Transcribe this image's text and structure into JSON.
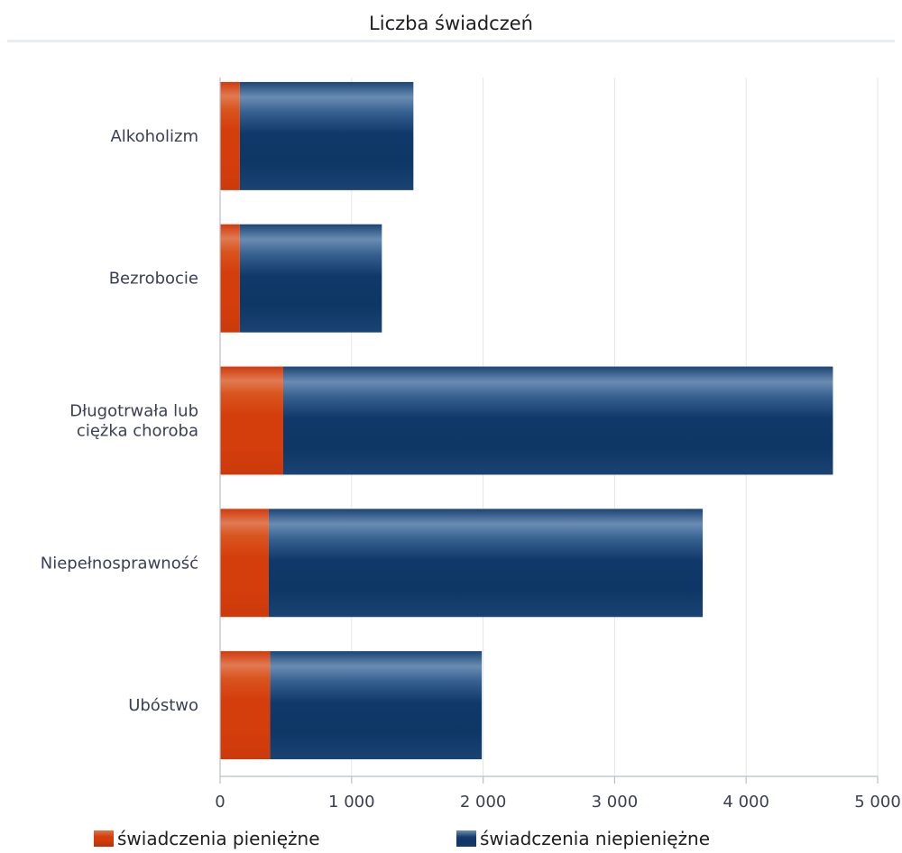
{
  "chart_data": {
    "type": "bar",
    "orientation": "horizontal",
    "stacked": true,
    "title": "Liczba świadczeń",
    "categories": [
      "Alkoholizm",
      "Bezrobocie",
      "Długotrwała lub ciężka choroba",
      "Niepełnosprawność",
      "Ubóstwo"
    ],
    "category_lines": [
      [
        "Alkoholizm"
      ],
      [
        "Bezrobocie"
      ],
      [
        "Długotrwała lub",
        "ciężka choroba"
      ],
      [
        "Niepełnosprawność"
      ],
      [
        "Ubóstwo"
      ]
    ],
    "series": [
      {
        "name": "świadczenia pieniężne",
        "color": "#d43d0c",
        "values": [
          150,
          150,
          480,
          370,
          380
        ]
      },
      {
        "name": "świadczenia niepieniężne",
        "color": "#0f3766",
        "values": [
          1320,
          1080,
          4180,
          3300,
          1610
        ]
      }
    ],
    "xlim": [
      0,
      5000
    ],
    "x_ticks": [
      0,
      1000,
      2000,
      3000,
      4000,
      5000
    ],
    "x_tick_labels": [
      "0",
      "1 000",
      "2 000",
      "3 000",
      "4 000",
      "5 000"
    ],
    "grid": true,
    "legend_position": "bottom"
  }
}
